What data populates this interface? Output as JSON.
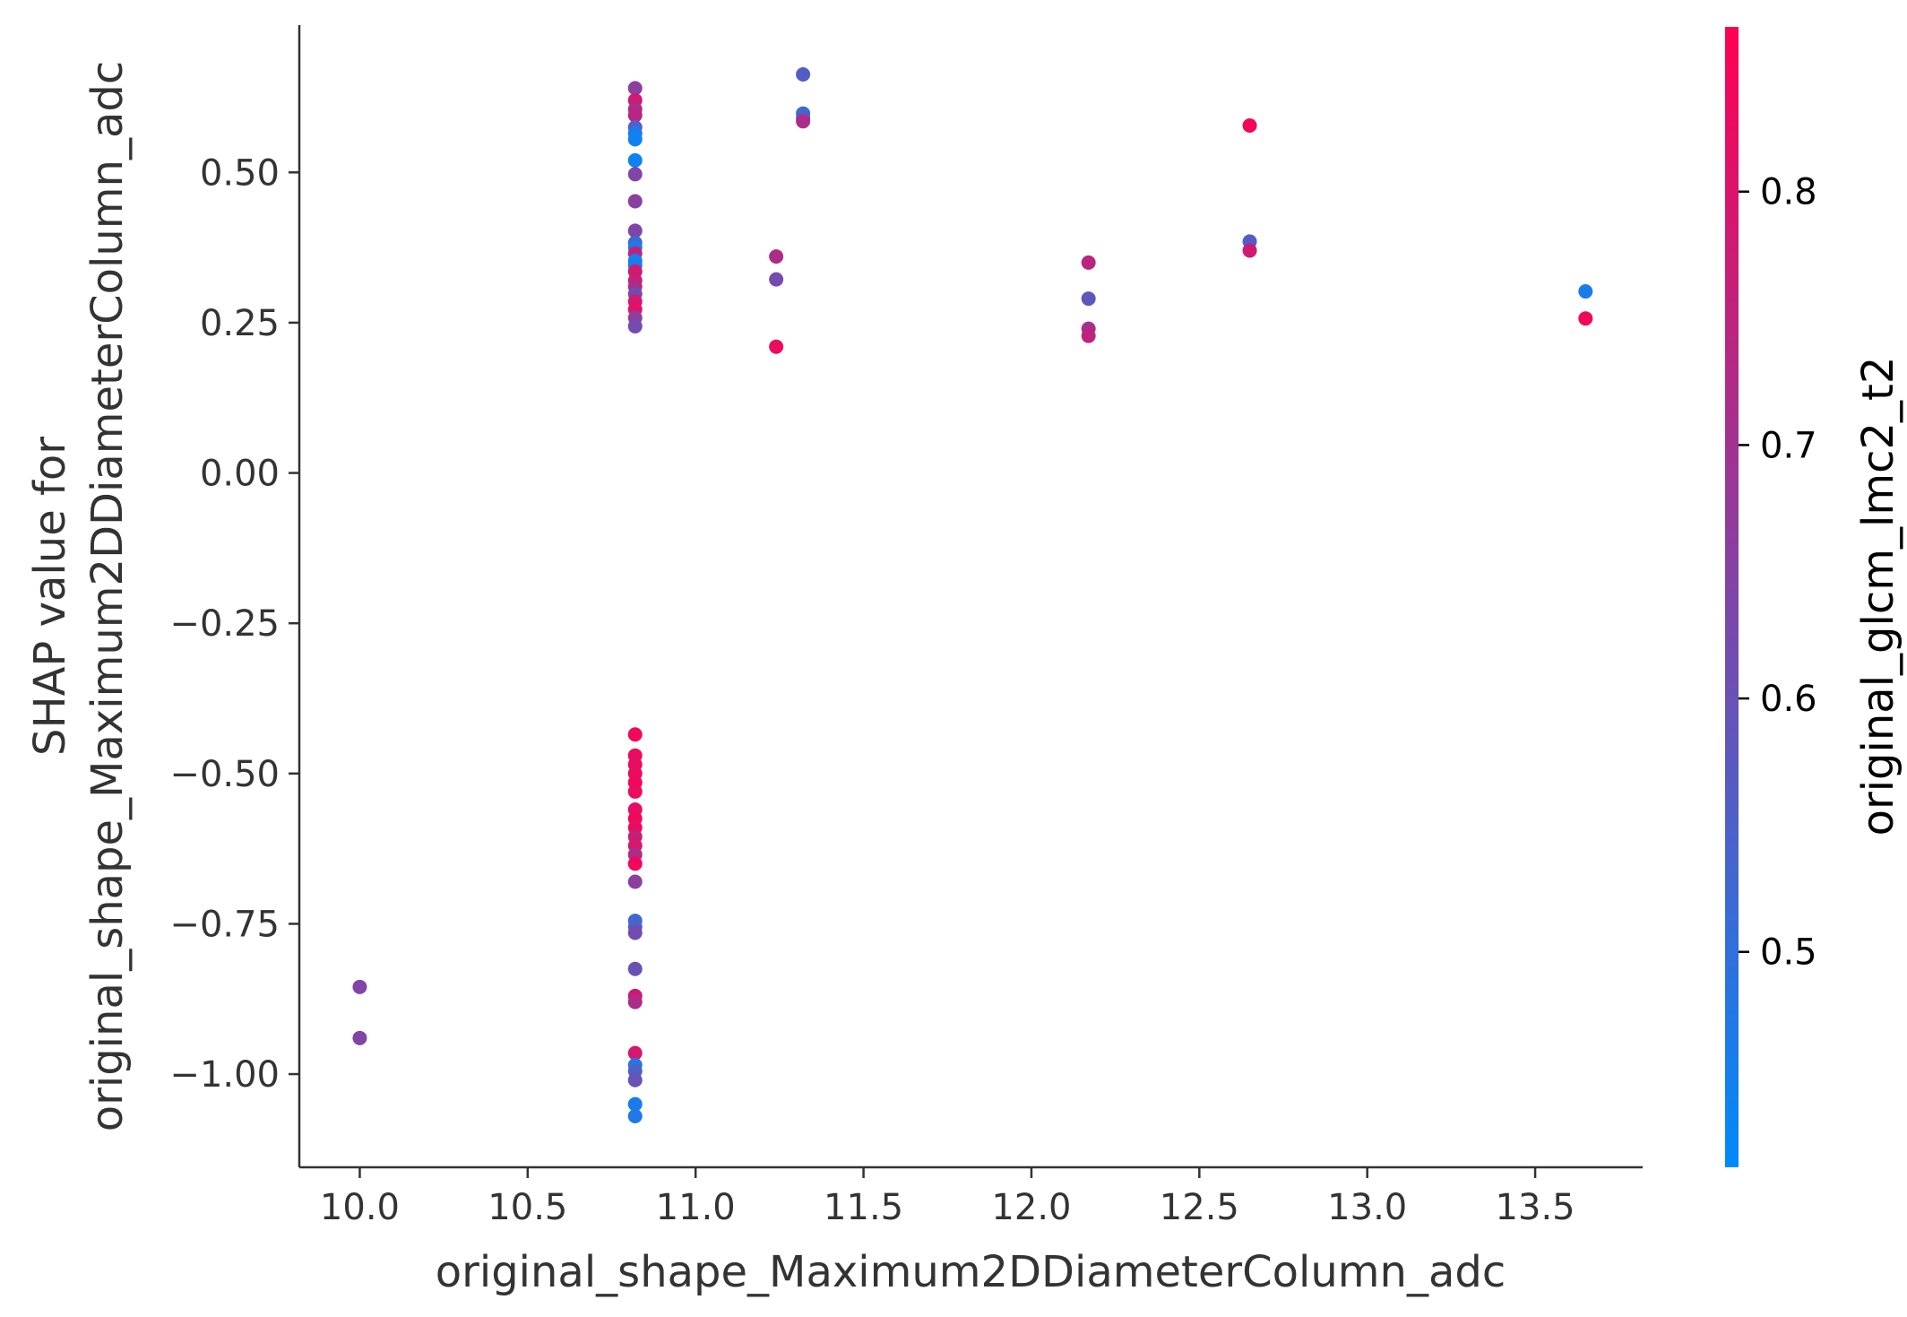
{
  "chart_data": {
    "type": "scatter",
    "title": "",
    "xlabel": "original_shape_Maximum2DDiameterColumn_adc",
    "ylabel_lines": [
      "SHAP value for",
      "original_shape_Maximum2DDiameterColumn_adc"
    ],
    "xlim": [
      9.82,
      13.82
    ],
    "ylim": [
      -1.155,
      0.745
    ],
    "xticks": [
      10.0,
      10.5,
      11.0,
      11.5,
      12.0,
      12.5,
      13.0,
      13.5
    ],
    "xtick_labels": [
      "10.0",
      "10.5",
      "11.0",
      "11.5",
      "12.0",
      "12.5",
      "13.0",
      "13.5"
    ],
    "yticks": [
      0.5,
      0.25,
      0.0,
      -0.25,
      -0.5,
      -0.75,
      -1.0
    ],
    "ytick_labels": [
      "0.50",
      "0.25",
      "0.00",
      "−0.25",
      "−0.50",
      "−0.75",
      "−1.00"
    ],
    "grid": false,
    "colorbar": {
      "label": "original_glcm_lmc2_t2",
      "range": [
        0.415,
        0.865
      ],
      "ticks": [
        0.5,
        0.6,
        0.7,
        0.8
      ],
      "tick_labels": [
        "0.5",
        "0.6",
        "0.7",
        "0.8"
      ],
      "colormap": [
        "#008afb",
        "#ff0052"
      ]
    },
    "points": [
      {
        "x": 10.0,
        "y": -0.855,
        "c": 0.64
      },
      {
        "x": 10.0,
        "y": -0.94,
        "c": 0.64
      },
      {
        "x": 10.82,
        "y": 0.64,
        "c": 0.66
      },
      {
        "x": 10.82,
        "y": 0.62,
        "c": 0.78
      },
      {
        "x": 10.82,
        "y": 0.605,
        "c": 0.72
      },
      {
        "x": 10.82,
        "y": 0.595,
        "c": 0.74
      },
      {
        "x": 10.82,
        "y": 0.575,
        "c": 0.55
      },
      {
        "x": 10.82,
        "y": 0.565,
        "c": 0.46
      },
      {
        "x": 10.82,
        "y": 0.555,
        "c": 0.44
      },
      {
        "x": 10.82,
        "y": 0.52,
        "c": 0.44
      },
      {
        "x": 10.82,
        "y": 0.497,
        "c": 0.64
      },
      {
        "x": 10.82,
        "y": 0.452,
        "c": 0.66
      },
      {
        "x": 10.82,
        "y": 0.403,
        "c": 0.64
      },
      {
        "x": 10.82,
        "y": 0.383,
        "c": 0.52
      },
      {
        "x": 10.82,
        "y": 0.375,
        "c": 0.47
      },
      {
        "x": 10.82,
        "y": 0.365,
        "c": 0.76
      },
      {
        "x": 10.82,
        "y": 0.353,
        "c": 0.44
      },
      {
        "x": 10.82,
        "y": 0.345,
        "c": 0.47
      },
      {
        "x": 10.82,
        "y": 0.335,
        "c": 0.78
      },
      {
        "x": 10.82,
        "y": 0.32,
        "c": 0.77
      },
      {
        "x": 10.82,
        "y": 0.31,
        "c": 0.72
      },
      {
        "x": 10.82,
        "y": 0.298,
        "c": 0.62
      },
      {
        "x": 10.82,
        "y": 0.285,
        "c": 0.79
      },
      {
        "x": 10.82,
        "y": 0.272,
        "c": 0.81
      },
      {
        "x": 10.82,
        "y": 0.258,
        "c": 0.66
      },
      {
        "x": 10.82,
        "y": 0.244,
        "c": 0.62
      },
      {
        "x": 10.82,
        "y": -0.435,
        "c": 0.84
      },
      {
        "x": 10.82,
        "y": -0.47,
        "c": 0.83
      },
      {
        "x": 10.82,
        "y": -0.485,
        "c": 0.82
      },
      {
        "x": 10.82,
        "y": -0.5,
        "c": 0.83
      },
      {
        "x": 10.82,
        "y": -0.515,
        "c": 0.84
      },
      {
        "x": 10.82,
        "y": -0.53,
        "c": 0.83
      },
      {
        "x": 10.82,
        "y": -0.56,
        "c": 0.82
      },
      {
        "x": 10.82,
        "y": -0.575,
        "c": 0.84
      },
      {
        "x": 10.82,
        "y": -0.59,
        "c": 0.83
      },
      {
        "x": 10.82,
        "y": -0.605,
        "c": 0.76
      },
      {
        "x": 10.82,
        "y": -0.62,
        "c": 0.79
      },
      {
        "x": 10.82,
        "y": -0.635,
        "c": 0.72
      },
      {
        "x": 10.82,
        "y": -0.65,
        "c": 0.84
      },
      {
        "x": 10.82,
        "y": -0.68,
        "c": 0.66
      },
      {
        "x": 10.82,
        "y": -0.745,
        "c": 0.52
      },
      {
        "x": 10.82,
        "y": -0.755,
        "c": 0.55
      },
      {
        "x": 10.82,
        "y": -0.765,
        "c": 0.62
      },
      {
        "x": 10.82,
        "y": -0.825,
        "c": 0.6
      },
      {
        "x": 10.82,
        "y": -0.87,
        "c": 0.78
      },
      {
        "x": 10.82,
        "y": -0.88,
        "c": 0.72
      },
      {
        "x": 10.82,
        "y": -0.965,
        "c": 0.79
      },
      {
        "x": 10.82,
        "y": -0.985,
        "c": 0.48
      },
      {
        "x": 10.82,
        "y": -0.995,
        "c": 0.55
      },
      {
        "x": 10.82,
        "y": -1.01,
        "c": 0.6
      },
      {
        "x": 10.82,
        "y": -1.05,
        "c": 0.46
      },
      {
        "x": 10.82,
        "y": -1.07,
        "c": 0.47
      },
      {
        "x": 11.24,
        "y": 0.36,
        "c": 0.72
      },
      {
        "x": 11.24,
        "y": 0.322,
        "c": 0.62
      },
      {
        "x": 11.24,
        "y": 0.21,
        "c": 0.83
      },
      {
        "x": 11.32,
        "y": 0.663,
        "c": 0.56
      },
      {
        "x": 11.32,
        "y": 0.598,
        "c": 0.52
      },
      {
        "x": 11.32,
        "y": 0.59,
        "c": 0.56
      },
      {
        "x": 11.32,
        "y": 0.585,
        "c": 0.72
      },
      {
        "x": 12.17,
        "y": 0.35,
        "c": 0.74
      },
      {
        "x": 12.17,
        "y": 0.29,
        "c": 0.58
      },
      {
        "x": 12.17,
        "y": 0.24,
        "c": 0.71
      },
      {
        "x": 12.17,
        "y": 0.228,
        "c": 0.75
      },
      {
        "x": 12.65,
        "y": 0.578,
        "c": 0.84
      },
      {
        "x": 12.65,
        "y": 0.385,
        "c": 0.56
      },
      {
        "x": 12.65,
        "y": 0.37,
        "c": 0.78
      },
      {
        "x": 13.65,
        "y": 0.302,
        "c": 0.46
      },
      {
        "x": 13.65,
        "y": 0.257,
        "c": 0.84
      }
    ]
  }
}
